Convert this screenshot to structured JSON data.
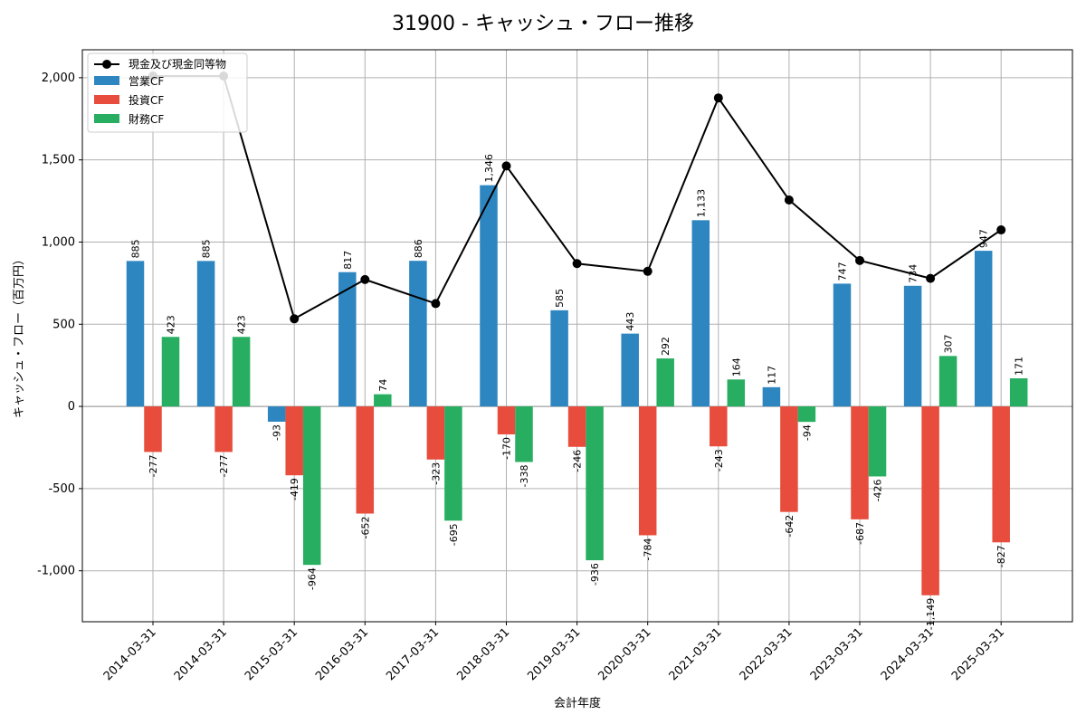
{
  "chart_data": {
    "type": "bar",
    "title": "31900 - キャッシュ・フロー推移",
    "xlabel": "会計年度",
    "ylabel": "キャッシュ・フロー（百万円）",
    "categories": [
      "2014-03-31",
      "2014-03-31",
      "2015-03-31",
      "2016-03-31",
      "2017-03-31",
      "2018-03-31",
      "2019-03-31",
      "2020-03-31",
      "2021-03-31",
      "2022-03-31",
      "2023-03-31",
      "2024-03-31",
      "2025-03-31"
    ],
    "ylim": [
      -1310,
      2170
    ],
    "yticks": [
      -1000,
      -500,
      0,
      500,
      1000,
      1500,
      2000
    ],
    "ytick_labels": [
      "-1,000",
      "-500",
      "0",
      "500",
      "1,000",
      "1,500",
      "2,000"
    ],
    "grid": true,
    "legend_position": "top-left",
    "series": [
      {
        "name": "営業CF",
        "kind": "bar",
        "color": "#2e86c1",
        "values": [
          885,
          885,
          -93,
          817,
          886,
          1346,
          585,
          443,
          1133,
          117,
          747,
          734,
          947
        ],
        "labels": [
          "885",
          "885",
          "-93",
          "817",
          "886",
          "1,346",
          "585",
          "443",
          "1,133",
          "117",
          "747",
          "734",
          "947"
        ]
      },
      {
        "name": "投資CF",
        "kind": "bar",
        "color": "#e74c3c",
        "values": [
          -277,
          -277,
          -419,
          -652,
          -323,
          -170,
          -246,
          -784,
          -243,
          -642,
          -687,
          -1149,
          -827
        ],
        "labels": [
          "-277",
          "-277",
          "-419",
          "-652",
          "-323",
          "-170",
          "-246",
          "-784",
          "-243",
          "-642",
          "-687",
          "-1,149",
          "-827"
        ]
      },
      {
        "name": "財務CF",
        "kind": "bar",
        "color": "#27ae60",
        "values": [
          423,
          423,
          -964,
          74,
          -695,
          -338,
          -936,
          292,
          164,
          -94,
          -426,
          307,
          171
        ],
        "labels": [
          "423",
          "423",
          "-964",
          "74",
          "-695",
          "-338",
          "-936",
          "292",
          "164",
          "-94",
          "-426",
          "307",
          "171"
        ]
      },
      {
        "name": "現金及び現金同等物",
        "kind": "line",
        "color": "#000000",
        "values": [
          2010,
          2010,
          533,
          772,
          626,
          1463,
          869,
          822,
          1877,
          1256,
          888,
          779,
          1074
        ]
      }
    ]
  }
}
